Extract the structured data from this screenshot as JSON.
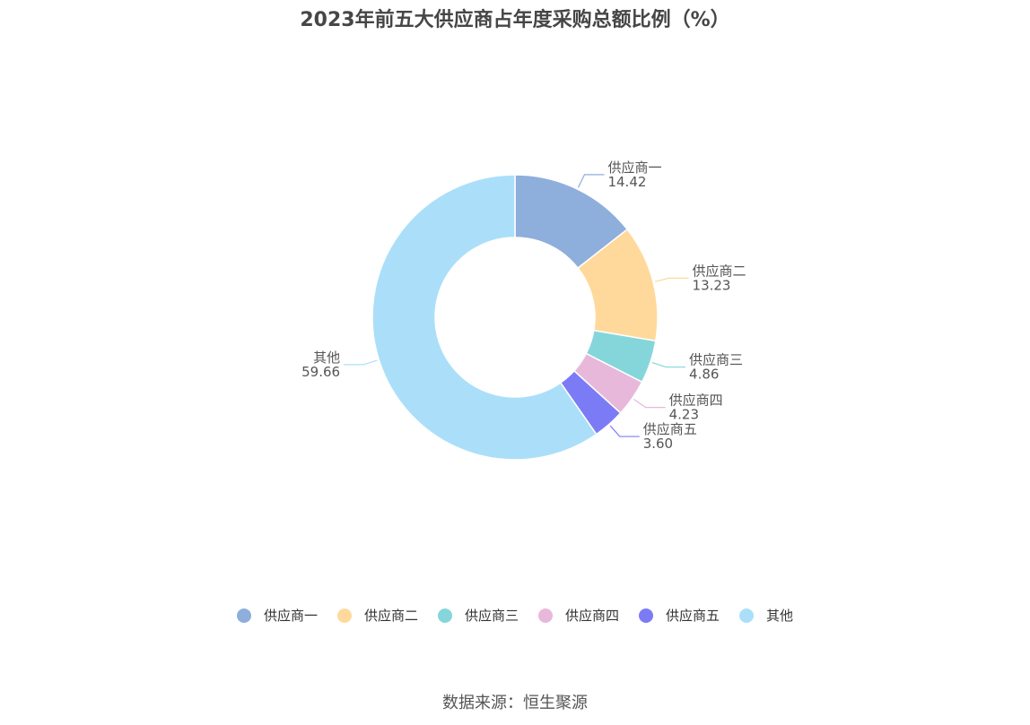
{
  "chart_data": {
    "type": "pie",
    "variant": "donut",
    "title": "2023年前五大供应商占年度采购总额比例（%）",
    "categories": [
      "供应商一",
      "供应商二",
      "供应商三",
      "供应商四",
      "供应商五",
      "其他"
    ],
    "values": [
      14.42,
      13.23,
      4.86,
      4.23,
      3.6,
      59.66
    ],
    "value_labels": [
      "14.42",
      "13.23",
      "4.86",
      "4.23",
      "3.60",
      "59.66"
    ],
    "colors": [
      "#8eaedc",
      "#ffd99b",
      "#85d6da",
      "#e8b8db",
      "#7b7cf5",
      "#abdff9"
    ],
    "legend_position": "bottom"
  },
  "source": "数据来源：恒生聚源"
}
